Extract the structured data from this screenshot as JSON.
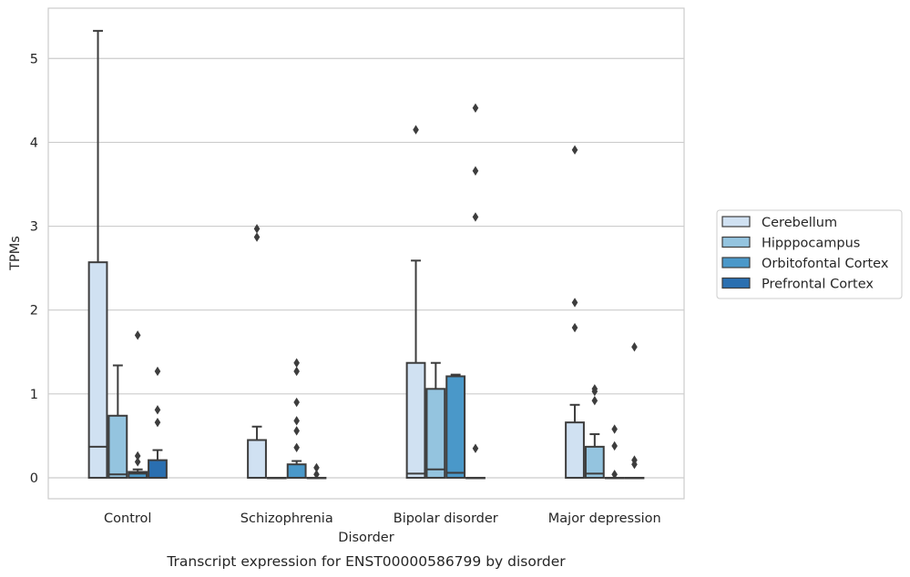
{
  "chart_data": {
    "type": "box",
    "title": "",
    "caption": "Transcript expression for ENST00000586799 by disorder",
    "xlabel": "Disorder",
    "ylabel": "TPMs",
    "ylim": [
      -0.25,
      5.6
    ],
    "yticks": [
      0,
      1,
      2,
      3,
      4,
      5
    ],
    "grid": "horizontal",
    "legend_position": "right",
    "categories": [
      "Control",
      "Schizophrenia",
      "Bipolar disorder",
      "Major depression"
    ],
    "series": [
      {
        "name": "Cerebellum",
        "color": "#d0e1f2",
        "boxes": [
          {
            "q1": 0.0,
            "median": 0.37,
            "q3": 2.57,
            "whisker_low": 0.0,
            "whisker_high": 5.33,
            "outliers": []
          },
          {
            "q1": 0.0,
            "median": 0.0,
            "q3": 0.45,
            "whisker_low": 0.0,
            "whisker_high": 0.61,
            "outliers": [
              2.97,
              2.87
            ]
          },
          {
            "q1": 0.0,
            "median": 0.05,
            "q3": 1.37,
            "whisker_low": 0.0,
            "whisker_high": 2.59,
            "outliers": [
              4.15
            ]
          },
          {
            "q1": 0.0,
            "median": 0.0,
            "q3": 0.66,
            "whisker_low": 0.0,
            "whisker_high": 0.87,
            "outliers": [
              3.91,
              2.09,
              1.79
            ]
          }
        ]
      },
      {
        "name": "Hipppocampus",
        "color": "#94c4df",
        "boxes": [
          {
            "q1": 0.0,
            "median": 0.04,
            "q3": 0.74,
            "whisker_low": 0.0,
            "whisker_high": 1.34,
            "outliers": []
          },
          {
            "q1": 0.0,
            "median": 0.0,
            "q3": 0.0,
            "whisker_low": 0.0,
            "whisker_high": 0.0,
            "outliers": []
          },
          {
            "q1": 0.0,
            "median": 0.1,
            "q3": 1.06,
            "whisker_low": 0.0,
            "whisker_high": 1.37,
            "outliers": []
          },
          {
            "q1": 0.0,
            "median": 0.05,
            "q3": 0.37,
            "whisker_low": 0.0,
            "whisker_high": 0.52,
            "outliers": [
              1.06,
              1.03,
              0.92
            ]
          }
        ]
      },
      {
        "name": "Orbitofontal Cortex",
        "color": "#4a98c9",
        "boxes": [
          {
            "q1": 0.0,
            "median": 0.05,
            "q3": 0.07,
            "whisker_low": 0.0,
            "whisker_high": 0.1,
            "outliers": [
              1.7,
              0.26,
              0.19
            ]
          },
          {
            "q1": 0.0,
            "median": 0.0,
            "q3": 0.16,
            "whisker_low": 0.0,
            "whisker_high": 0.2,
            "outliers": [
              1.37,
              1.27,
              0.68,
              0.56,
              0.36,
              0.9
            ]
          },
          {
            "q1": 0.0,
            "median": 0.06,
            "q3": 1.21,
            "whisker_low": 0.0,
            "whisker_high": 1.23,
            "outliers": []
          },
          {
            "q1": 0.0,
            "median": 0.0,
            "q3": 0.0,
            "whisker_low": 0.0,
            "whisker_high": 0.0,
            "outliers": [
              0.58,
              0.38,
              0.04
            ]
          }
        ]
      },
      {
        "name": "Prefrontal Cortex",
        "color": "#2a6fb0",
        "boxes": [
          {
            "q1": 0.0,
            "median": 0.0,
            "q3": 0.21,
            "whisker_low": 0.0,
            "whisker_high": 0.33,
            "outliers": [
              1.27,
              0.81,
              0.66
            ]
          },
          {
            "q1": 0.0,
            "median": 0.0,
            "q3": 0.0,
            "whisker_low": 0.0,
            "whisker_high": 0.0,
            "outliers": [
              0.12,
              0.04
            ]
          },
          {
            "q1": 0.0,
            "median": 0.0,
            "q3": 0.0,
            "whisker_low": 0.0,
            "whisker_high": 0.0,
            "outliers": [
              4.41,
              3.66,
              3.11,
              0.35
            ]
          },
          {
            "q1": 0.0,
            "median": 0.0,
            "q3": 0.0,
            "whisker_low": 0.0,
            "whisker_high": 0.0,
            "outliers": [
              1.56,
              0.21,
              0.16
            ]
          }
        ]
      }
    ]
  }
}
